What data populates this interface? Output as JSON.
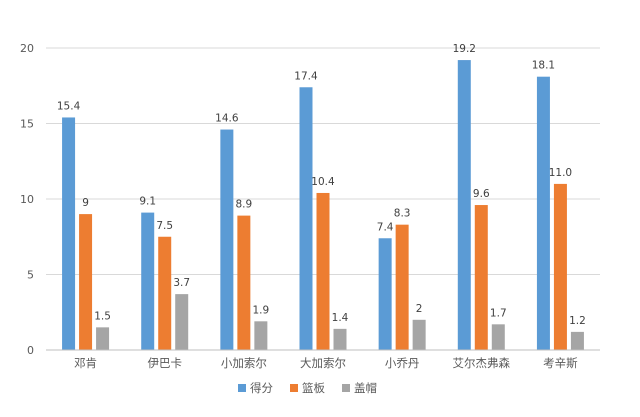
{
  "chart_data": {
    "type": "bar",
    "categories": [
      "邓肯",
      "伊巴卡",
      "小加索尔",
      "大加索尔",
      "小乔丹",
      "艾尔杰弗森",
      "考辛斯"
    ],
    "series": [
      {
        "name": "得分",
        "color": "#5B9BD5",
        "values": [
          15.4,
          9.1,
          14.6,
          17.4,
          7.4,
          19.2,
          18.1
        ],
        "labels": [
          "15.4",
          "9.1",
          "14.6",
          "17.4",
          "7.4",
          "19.2",
          "18.1"
        ]
      },
      {
        "name": "篮板",
        "color": "#ED7D31",
        "values": [
          9,
          7.5,
          8.9,
          10.4,
          8.3,
          9.6,
          11.0
        ],
        "labels": [
          "9",
          "7.5",
          "8.9",
          "10.4",
          "8.3",
          "9.6",
          "11.0"
        ]
      },
      {
        "name": "盖帽",
        "color": "#A5A5A5",
        "values": [
          1.5,
          3.7,
          1.9,
          1.4,
          2,
          1.7,
          1.2
        ],
        "labels": [
          "1.5",
          "3.7",
          "1.9",
          "1.4",
          "2",
          "1.7",
          "1.2"
        ]
      }
    ],
    "yticks": [
      "0",
      "5",
      "10",
      "15",
      "20"
    ],
    "ylim": [
      0,
      20
    ],
    "grid": true,
    "legend": "bottom"
  }
}
